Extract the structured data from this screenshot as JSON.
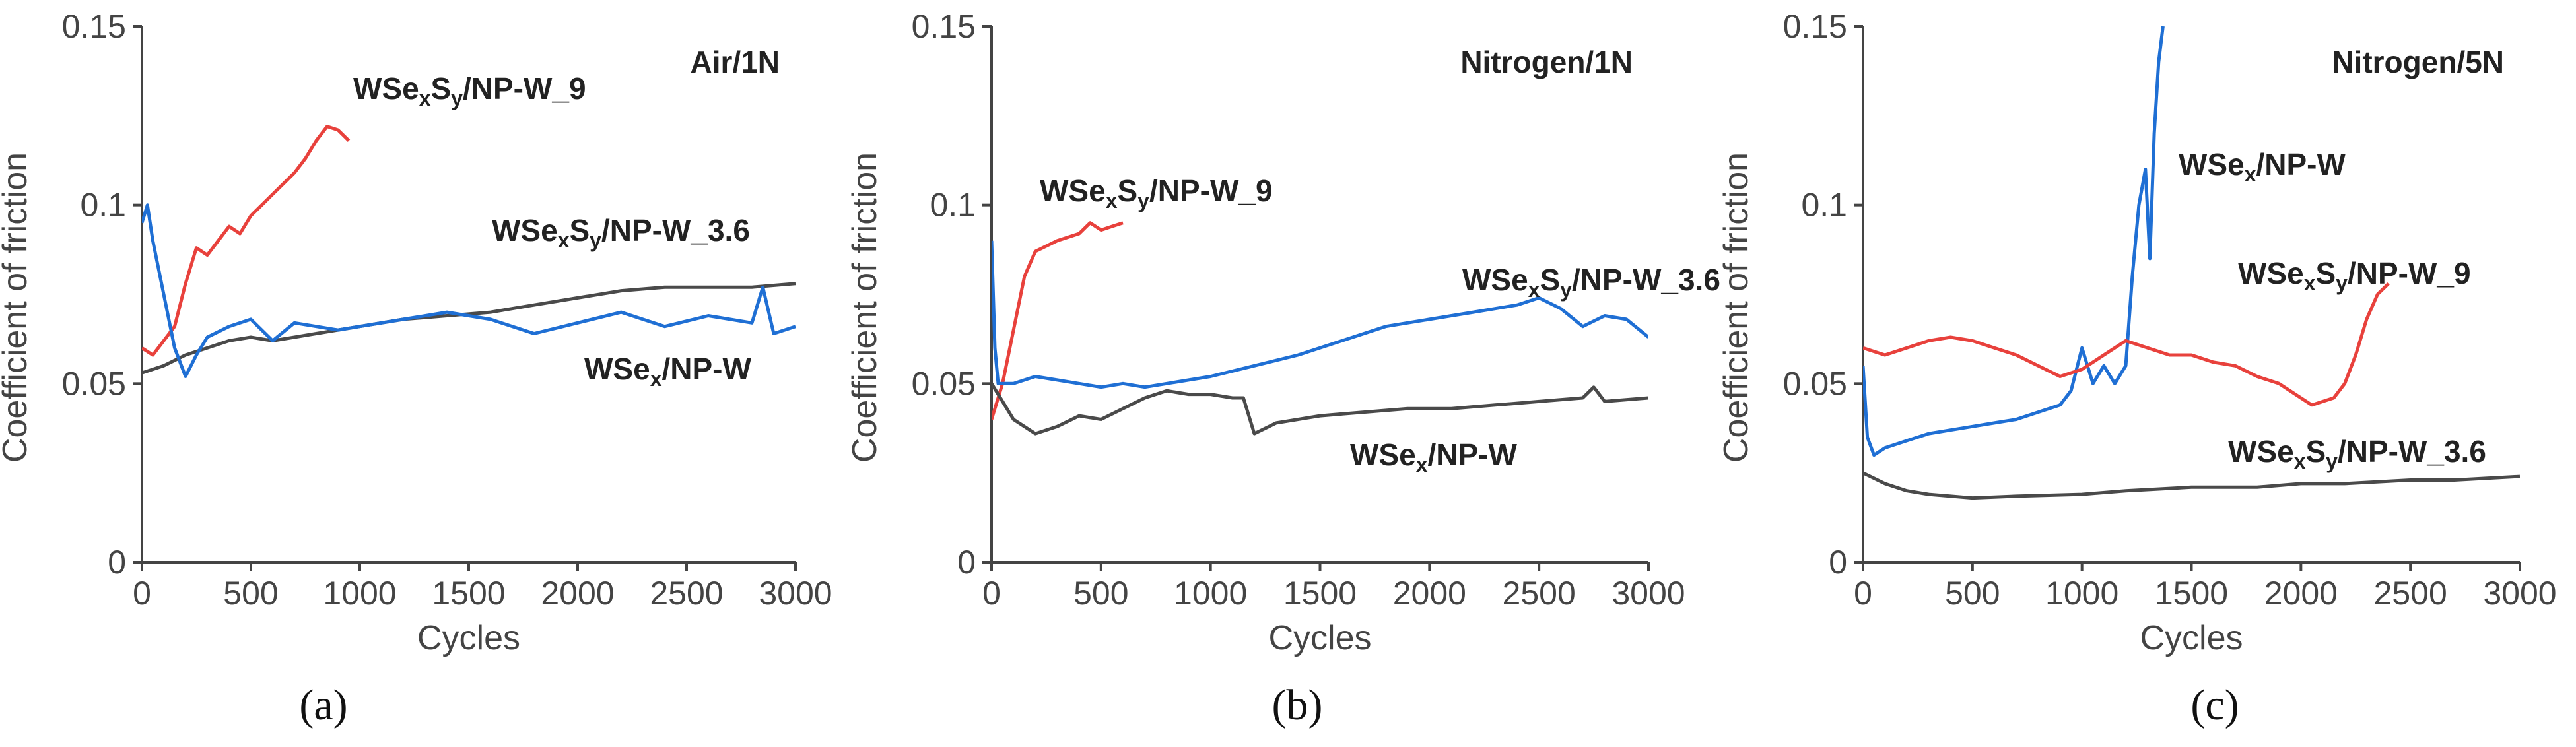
{
  "chart_data": [
    {
      "type": "line",
      "panel": "a",
      "caption": "(a)",
      "title": "Air/1N",
      "xlabel": "Cycles",
      "ylabel": "Coefficient of friction",
      "xlim": [
        0,
        3000
      ],
      "ylim": [
        0,
        0.15
      ],
      "xticks": [
        0,
        500,
        1000,
        1500,
        2000,
        2500,
        3000
      ],
      "yticks": [
        0,
        0.05,
        0.1,
        0.15
      ],
      "xtick_labels": [
        "0",
        "500",
        "1000",
        "1500",
        "2000",
        "2500",
        "3000"
      ],
      "ytick_labels": [
        "0",
        "0.05",
        "0.1",
        "0.15"
      ],
      "series": [
        {
          "name": "WSexSy/NP-W_9",
          "label_parts": [
            [
              "WSe",
              ""
            ],
            [
              "x",
              "sub"
            ],
            [
              "S",
              ""
            ],
            [
              "y",
              "sub"
            ],
            [
              "/NP-W_9",
              ""
            ]
          ],
          "color": "#e8413c",
          "x": [
            0,
            50,
            100,
            150,
            200,
            250,
            300,
            350,
            400,
            450,
            500,
            550,
            600,
            650,
            700,
            750,
            800,
            850,
            900,
            950
          ],
          "y": [
            0.06,
            0.058,
            0.062,
            0.066,
            0.078,
            0.088,
            0.086,
            0.09,
            0.094,
            0.092,
            0.097,
            0.1,
            0.103,
            0.106,
            0.109,
            0.113,
            0.118,
            0.122,
            0.121,
            0.118
          ]
        },
        {
          "name": "WSexSy/NP-W_3.6",
          "label_parts": [
            [
              "WSe",
              ""
            ],
            [
              "x",
              "sub"
            ],
            [
              "S",
              ""
            ],
            [
              "y",
              "sub"
            ],
            [
              "/NP-W_3.6",
              ""
            ]
          ],
          "color": "#4a4a4a",
          "x": [
            0,
            100,
            200,
            300,
            400,
            500,
            600,
            700,
            800,
            900,
            1000,
            1200,
            1400,
            1600,
            1800,
            2000,
            2200,
            2400,
            2600,
            2800,
            3000
          ],
          "y": [
            0.053,
            0.055,
            0.058,
            0.06,
            0.062,
            0.063,
            0.062,
            0.063,
            0.064,
            0.065,
            0.066,
            0.068,
            0.069,
            0.07,
            0.072,
            0.074,
            0.076,
            0.077,
            0.077,
            0.077,
            0.078
          ]
        },
        {
          "name": "WSex/NP-W",
          "label_parts": [
            [
              "WSe",
              ""
            ],
            [
              "x",
              "sub"
            ],
            [
              "/NP-W",
              ""
            ]
          ],
          "color": "#1f6fd4",
          "x": [
            0,
            25,
            50,
            100,
            150,
            200,
            250,
            300,
            400,
            500,
            600,
            700,
            800,
            900,
            1000,
            1200,
            1400,
            1600,
            1800,
            2000,
            2200,
            2400,
            2600,
            2800,
            2850,
            2900,
            3000
          ],
          "y": [
            0.095,
            0.1,
            0.09,
            0.075,
            0.06,
            0.052,
            0.058,
            0.063,
            0.066,
            0.068,
            0.062,
            0.067,
            0.066,
            0.065,
            0.066,
            0.068,
            0.07,
            0.068,
            0.064,
            0.067,
            0.07,
            0.066,
            0.069,
            0.067,
            0.077,
            0.064,
            0.066
          ]
        }
      ]
    },
    {
      "type": "line",
      "panel": "b",
      "caption": "(b)",
      "title": "Nitrogen/1N",
      "xlabel": "Cycles",
      "ylabel": "Coefficient of friction",
      "xlim": [
        0,
        3000
      ],
      "ylim": [
        0,
        0.15
      ],
      "xticks": [
        0,
        500,
        1000,
        1500,
        2000,
        2500,
        3000
      ],
      "yticks": [
        0,
        0.05,
        0.1,
        0.15
      ],
      "xtick_labels": [
        "0",
        "500",
        "1000",
        "1500",
        "2000",
        "2500",
        "3000"
      ],
      "ytick_labels": [
        "0",
        "0.05",
        "0.1",
        "0.15"
      ],
      "series": [
        {
          "name": "WSexSy/NP-W_9",
          "label_parts": [
            [
              "WSe",
              ""
            ],
            [
              "x",
              "sub"
            ],
            [
              "S",
              ""
            ],
            [
              "y",
              "sub"
            ],
            [
              "/NP-W_9",
              ""
            ]
          ],
          "color": "#e8413c",
          "x": [
            0,
            50,
            100,
            150,
            200,
            300,
            400,
            450,
            500,
            550,
            600
          ],
          "y": [
            0.04,
            0.05,
            0.065,
            0.08,
            0.087,
            0.09,
            0.092,
            0.095,
            0.093,
            0.094,
            0.095
          ]
        },
        {
          "name": "WSexSy/NP-W_3.6",
          "label_parts": [
            [
              "WSe",
              ""
            ],
            [
              "x",
              "sub"
            ],
            [
              "S",
              ""
            ],
            [
              "y",
              "sub"
            ],
            [
              "/NP-W_3.6",
              ""
            ]
          ],
          "color": "#4a4a4a",
          "x": [
            0,
            100,
            200,
            300,
            400,
            500,
            600,
            700,
            800,
            900,
            1000,
            1100,
            1150,
            1200,
            1300,
            1500,
            1700,
            1900,
            2100,
            2300,
            2500,
            2700,
            2750,
            2800,
            3000
          ],
          "y": [
            0.05,
            0.04,
            0.036,
            0.038,
            0.041,
            0.04,
            0.043,
            0.046,
            0.048,
            0.047,
            0.047,
            0.046,
            0.046,
            0.036,
            0.039,
            0.041,
            0.042,
            0.043,
            0.043,
            0.044,
            0.045,
            0.046,
            0.049,
            0.045,
            0.046
          ]
        },
        {
          "name": "WSex/NP-W",
          "label_parts": [
            [
              "WSe",
              ""
            ],
            [
              "x",
              "sub"
            ],
            [
              "/NP-W",
              ""
            ]
          ],
          "color": "#1f6fd4",
          "x": [
            0,
            15,
            30,
            100,
            200,
            300,
            400,
            500,
            600,
            700,
            800,
            900,
            1000,
            1200,
            1400,
            1600,
            1800,
            2000,
            2200,
            2400,
            2500,
            2600,
            2700,
            2800,
            2900,
            3000
          ],
          "y": [
            0.09,
            0.06,
            0.05,
            0.05,
            0.052,
            0.051,
            0.05,
            0.049,
            0.05,
            0.049,
            0.05,
            0.051,
            0.052,
            0.055,
            0.058,
            0.062,
            0.066,
            0.068,
            0.07,
            0.072,
            0.074,
            0.071,
            0.066,
            0.069,
            0.068,
            0.063
          ]
        }
      ]
    },
    {
      "type": "line",
      "panel": "c",
      "caption": "(c)",
      "title": "Nitrogen/5N",
      "xlabel": "Cycles",
      "ylabel": "Coefficient of friction",
      "xlim": [
        0,
        3000
      ],
      "ylim": [
        0,
        0.15
      ],
      "xticks": [
        0,
        500,
        1000,
        1500,
        2000,
        2500,
        3000
      ],
      "yticks": [
        0,
        0.05,
        0.1,
        0.15
      ],
      "xtick_labels": [
        "0",
        "500",
        "1000",
        "1500",
        "2000",
        "2500",
        "3000"
      ],
      "ytick_labels": [
        "0",
        "0.05",
        "0.1",
        "0.15"
      ],
      "series": [
        {
          "name": "WSex/NP-W",
          "label_parts": [
            [
              "WSe",
              ""
            ],
            [
              "x",
              "sub"
            ],
            [
              "/NP-W",
              ""
            ]
          ],
          "color": "#1f6fd4",
          "x": [
            0,
            20,
            50,
            100,
            200,
            300,
            400,
            500,
            600,
            700,
            800,
            900,
            950,
            1000,
            1050,
            1100,
            1150,
            1200,
            1230,
            1260,
            1290,
            1310,
            1330,
            1350,
            1370
          ],
          "y": [
            0.055,
            0.035,
            0.03,
            0.032,
            0.034,
            0.036,
            0.037,
            0.038,
            0.039,
            0.04,
            0.042,
            0.044,
            0.048,
            0.06,
            0.05,
            0.055,
            0.05,
            0.055,
            0.08,
            0.1,
            0.11,
            0.085,
            0.12,
            0.14,
            0.15
          ]
        },
        {
          "name": "WSexSy/NP-W_9",
          "label_parts": [
            [
              "WSe",
              ""
            ],
            [
              "x",
              "sub"
            ],
            [
              "S",
              ""
            ],
            [
              "y",
              "sub"
            ],
            [
              "/NP-W_9",
              ""
            ]
          ],
          "color": "#e8413c",
          "x": [
            0,
            100,
            200,
            300,
            400,
            500,
            600,
            700,
            800,
            900,
            1000,
            1100,
            1200,
            1300,
            1400,
            1500,
            1600,
            1700,
            1800,
            1900,
            2000,
            2050,
            2100,
            2150,
            2200,
            2250,
            2300,
            2350,
            2400
          ],
          "y": [
            0.06,
            0.058,
            0.06,
            0.062,
            0.063,
            0.062,
            0.06,
            0.058,
            0.055,
            0.052,
            0.054,
            0.058,
            0.062,
            0.06,
            0.058,
            0.058,
            0.056,
            0.055,
            0.052,
            0.05,
            0.046,
            0.044,
            0.045,
            0.046,
            0.05,
            0.058,
            0.068,
            0.075,
            0.078
          ]
        },
        {
          "name": "WSexSy/NP-W_3.6",
          "label_parts": [
            [
              "WSe",
              ""
            ],
            [
              "x",
              "sub"
            ],
            [
              "S",
              ""
            ],
            [
              "y",
              "sub"
            ],
            [
              "/NP-W_3.6",
              ""
            ]
          ],
          "color": "#4a4a4a",
          "x": [
            0,
            100,
            200,
            300,
            500,
            700,
            1000,
            1200,
            1500,
            1800,
            2000,
            2200,
            2500,
            2700,
            3000
          ],
          "y": [
            0.025,
            0.022,
            0.02,
            0.019,
            0.018,
            0.0185,
            0.019,
            0.02,
            0.021,
            0.021,
            0.022,
            0.022,
            0.023,
            0.023,
            0.024
          ]
        }
      ]
    }
  ]
}
